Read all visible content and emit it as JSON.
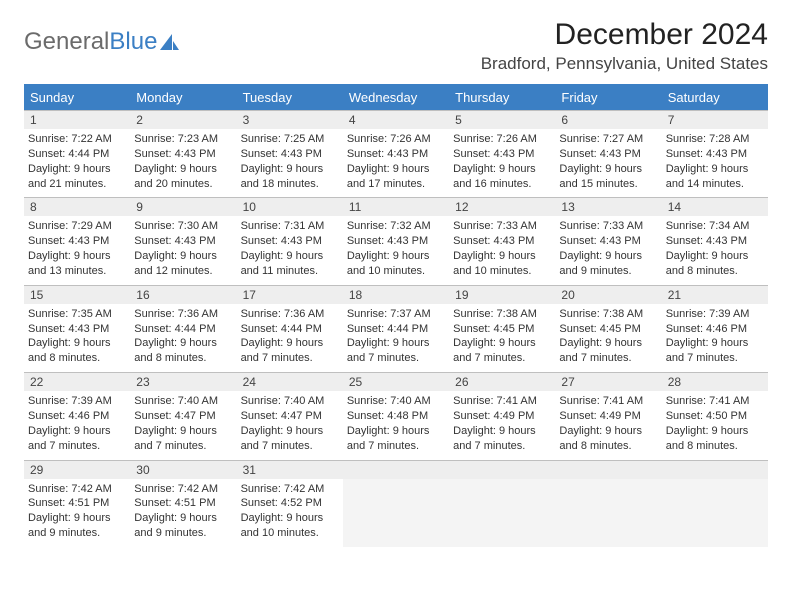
{
  "logo": {
    "text1": "General",
    "text2": "Blue"
  },
  "title": "December 2024",
  "location": "Bradford, Pennsylvania, United States",
  "colors": {
    "header_bg": "#3b7fc4",
    "header_text": "#ffffff",
    "daynum_bg": "#eeeeee",
    "border": "#bfbfbf",
    "blank_bg": "#f4f4f4",
    "text": "#333333"
  },
  "font": {
    "body_size": 11,
    "title_size": 30,
    "location_size": 17,
    "header_size": 13,
    "daynum_size": 12
  },
  "weekdays": [
    "Sunday",
    "Monday",
    "Tuesday",
    "Wednesday",
    "Thursday",
    "Friday",
    "Saturday"
  ],
  "days": [
    {
      "n": "1",
      "sunrise": "Sunrise: 7:22 AM",
      "sunset": "Sunset: 4:44 PM",
      "d1": "Daylight: 9 hours",
      "d2": "and 21 minutes."
    },
    {
      "n": "2",
      "sunrise": "Sunrise: 7:23 AM",
      "sunset": "Sunset: 4:43 PM",
      "d1": "Daylight: 9 hours",
      "d2": "and 20 minutes."
    },
    {
      "n": "3",
      "sunrise": "Sunrise: 7:25 AM",
      "sunset": "Sunset: 4:43 PM",
      "d1": "Daylight: 9 hours",
      "d2": "and 18 minutes."
    },
    {
      "n": "4",
      "sunrise": "Sunrise: 7:26 AM",
      "sunset": "Sunset: 4:43 PM",
      "d1": "Daylight: 9 hours",
      "d2": "and 17 minutes."
    },
    {
      "n": "5",
      "sunrise": "Sunrise: 7:26 AM",
      "sunset": "Sunset: 4:43 PM",
      "d1": "Daylight: 9 hours",
      "d2": "and 16 minutes."
    },
    {
      "n": "6",
      "sunrise": "Sunrise: 7:27 AM",
      "sunset": "Sunset: 4:43 PM",
      "d1": "Daylight: 9 hours",
      "d2": "and 15 minutes."
    },
    {
      "n": "7",
      "sunrise": "Sunrise: 7:28 AM",
      "sunset": "Sunset: 4:43 PM",
      "d1": "Daylight: 9 hours",
      "d2": "and 14 minutes."
    },
    {
      "n": "8",
      "sunrise": "Sunrise: 7:29 AM",
      "sunset": "Sunset: 4:43 PM",
      "d1": "Daylight: 9 hours",
      "d2": "and 13 minutes."
    },
    {
      "n": "9",
      "sunrise": "Sunrise: 7:30 AM",
      "sunset": "Sunset: 4:43 PM",
      "d1": "Daylight: 9 hours",
      "d2": "and 12 minutes."
    },
    {
      "n": "10",
      "sunrise": "Sunrise: 7:31 AM",
      "sunset": "Sunset: 4:43 PM",
      "d1": "Daylight: 9 hours",
      "d2": "and 11 minutes."
    },
    {
      "n": "11",
      "sunrise": "Sunrise: 7:32 AM",
      "sunset": "Sunset: 4:43 PM",
      "d1": "Daylight: 9 hours",
      "d2": "and 10 minutes."
    },
    {
      "n": "12",
      "sunrise": "Sunrise: 7:33 AM",
      "sunset": "Sunset: 4:43 PM",
      "d1": "Daylight: 9 hours",
      "d2": "and 10 minutes."
    },
    {
      "n": "13",
      "sunrise": "Sunrise: 7:33 AM",
      "sunset": "Sunset: 4:43 PM",
      "d1": "Daylight: 9 hours",
      "d2": "and 9 minutes."
    },
    {
      "n": "14",
      "sunrise": "Sunrise: 7:34 AM",
      "sunset": "Sunset: 4:43 PM",
      "d1": "Daylight: 9 hours",
      "d2": "and 8 minutes."
    },
    {
      "n": "15",
      "sunrise": "Sunrise: 7:35 AM",
      "sunset": "Sunset: 4:43 PM",
      "d1": "Daylight: 9 hours",
      "d2": "and 8 minutes."
    },
    {
      "n": "16",
      "sunrise": "Sunrise: 7:36 AM",
      "sunset": "Sunset: 4:44 PM",
      "d1": "Daylight: 9 hours",
      "d2": "and 8 minutes."
    },
    {
      "n": "17",
      "sunrise": "Sunrise: 7:36 AM",
      "sunset": "Sunset: 4:44 PM",
      "d1": "Daylight: 9 hours",
      "d2": "and 7 minutes."
    },
    {
      "n": "18",
      "sunrise": "Sunrise: 7:37 AM",
      "sunset": "Sunset: 4:44 PM",
      "d1": "Daylight: 9 hours",
      "d2": "and 7 minutes."
    },
    {
      "n": "19",
      "sunrise": "Sunrise: 7:38 AM",
      "sunset": "Sunset: 4:45 PM",
      "d1": "Daylight: 9 hours",
      "d2": "and 7 minutes."
    },
    {
      "n": "20",
      "sunrise": "Sunrise: 7:38 AM",
      "sunset": "Sunset: 4:45 PM",
      "d1": "Daylight: 9 hours",
      "d2": "and 7 minutes."
    },
    {
      "n": "21",
      "sunrise": "Sunrise: 7:39 AM",
      "sunset": "Sunset: 4:46 PM",
      "d1": "Daylight: 9 hours",
      "d2": "and 7 minutes."
    },
    {
      "n": "22",
      "sunrise": "Sunrise: 7:39 AM",
      "sunset": "Sunset: 4:46 PM",
      "d1": "Daylight: 9 hours",
      "d2": "and 7 minutes."
    },
    {
      "n": "23",
      "sunrise": "Sunrise: 7:40 AM",
      "sunset": "Sunset: 4:47 PM",
      "d1": "Daylight: 9 hours",
      "d2": "and 7 minutes."
    },
    {
      "n": "24",
      "sunrise": "Sunrise: 7:40 AM",
      "sunset": "Sunset: 4:47 PM",
      "d1": "Daylight: 9 hours",
      "d2": "and 7 minutes."
    },
    {
      "n": "25",
      "sunrise": "Sunrise: 7:40 AM",
      "sunset": "Sunset: 4:48 PM",
      "d1": "Daylight: 9 hours",
      "d2": "and 7 minutes."
    },
    {
      "n": "26",
      "sunrise": "Sunrise: 7:41 AM",
      "sunset": "Sunset: 4:49 PM",
      "d1": "Daylight: 9 hours",
      "d2": "and 7 minutes."
    },
    {
      "n": "27",
      "sunrise": "Sunrise: 7:41 AM",
      "sunset": "Sunset: 4:49 PM",
      "d1": "Daylight: 9 hours",
      "d2": "and 8 minutes."
    },
    {
      "n": "28",
      "sunrise": "Sunrise: 7:41 AM",
      "sunset": "Sunset: 4:50 PM",
      "d1": "Daylight: 9 hours",
      "d2": "and 8 minutes."
    },
    {
      "n": "29",
      "sunrise": "Sunrise: 7:42 AM",
      "sunset": "Sunset: 4:51 PM",
      "d1": "Daylight: 9 hours",
      "d2": "and 9 minutes."
    },
    {
      "n": "30",
      "sunrise": "Sunrise: 7:42 AM",
      "sunset": "Sunset: 4:51 PM",
      "d1": "Daylight: 9 hours",
      "d2": "and 9 minutes."
    },
    {
      "n": "31",
      "sunrise": "Sunrise: 7:42 AM",
      "sunset": "Sunset: 4:52 PM",
      "d1": "Daylight: 9 hours",
      "d2": "and 10 minutes."
    }
  ],
  "trailing_blanks": 4
}
